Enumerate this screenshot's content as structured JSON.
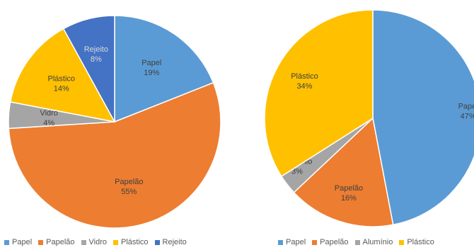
{
  "chart_data": [
    {
      "type": "pie",
      "title": "",
      "slices": [
        {
          "label": "Papel",
          "value": 19,
          "percent_label": "19%",
          "color": "#5B9BD5"
        },
        {
          "label": "Papelão",
          "value": 55,
          "percent_label": "55%",
          "color": "#ED7D31"
        },
        {
          "label": "Vidro",
          "value": 4,
          "percent_label": "4%",
          "color": "#A5A5A5"
        },
        {
          "label": "Plástico",
          "value": 14,
          "percent_label": "14%",
          "color": "#FFC000"
        },
        {
          "label": "Rejeito",
          "value": 8,
          "percent_label": "8%",
          "color": "#4472C4"
        }
      ],
      "legend": [
        "Papel",
        "Papelão",
        "Vidro",
        "Plástico",
        "Rejeito"
      ],
      "legend_position": "bottom"
    },
    {
      "type": "pie",
      "title": "",
      "slices": [
        {
          "label": "Papel",
          "value": 47,
          "percent_label": "47%",
          "color": "#5B9BD5"
        },
        {
          "label": "Papelão",
          "value": 16,
          "percent_label": "16%",
          "color": "#ED7D31"
        },
        {
          "label": "Alumínio",
          "value": 3,
          "percent_label": "3%",
          "color": "#A5A5A5"
        },
        {
          "label": "Plástico",
          "value": 34,
          "percent_label": "34%",
          "color": "#FFC000"
        }
      ],
      "legend": [
        "Papel",
        "Papelão",
        "Alumínio",
        "Plástico"
      ],
      "legend_position": "bottom"
    }
  ],
  "colors": {
    "label_text": "#404040",
    "label_text_dark_bg": "#D9D9D9",
    "legend_text": "#595959"
  }
}
